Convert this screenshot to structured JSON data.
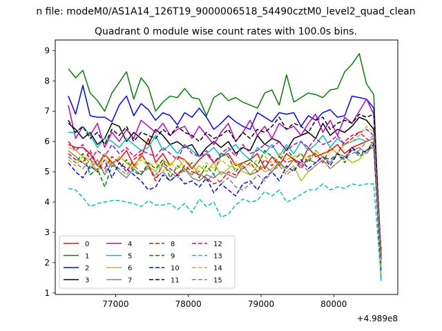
{
  "chart_data": {
    "type": "line",
    "suptitle": "n file: modeM0/AS1A14_126T19_9000006518_54490cztM0_level2_quad_clean",
    "title": "Quadrant 0 module wise count rates with 100.0s bins.",
    "xlabel": "",
    "ylabel": "",
    "x_offset_label": "+4.989e8",
    "xlim": [
      76170,
      80880
    ],
    "ylim": [
      0.95,
      9.35
    ],
    "xticks": [
      77000,
      78000,
      79000,
      80000
    ],
    "xtick_labels": [
      "77000",
      "78000",
      "79000",
      "80000"
    ],
    "yticks": [
      1,
      2,
      3,
      4,
      5,
      6,
      7,
      8,
      9
    ],
    "ytick_labels": [
      "1",
      "2",
      "3",
      "4",
      "5",
      "6",
      "7",
      "8",
      "9"
    ],
    "x": [
      76350,
      76450,
      76550,
      76650,
      76750,
      76850,
      76950,
      77050,
      77150,
      77250,
      77350,
      77450,
      77550,
      77650,
      77750,
      77850,
      77950,
      78050,
      78150,
      78250,
      78350,
      78450,
      78550,
      78650,
      78750,
      78850,
      78950,
      79050,
      79150,
      79250,
      79350,
      79450,
      79550,
      79650,
      79750,
      79850,
      79950,
      80050,
      80150,
      80250,
      80350,
      80450,
      80550,
      80650
    ],
    "legend": {
      "location": "lower-left",
      "ncol": 4
    },
    "series": [
      {
        "name": "0",
        "color": "#ff0000",
        "dash": "solid",
        "values": [
          5.9,
          5.8,
          5.8,
          5.6,
          5.2,
          5.6,
          5.3,
          5.4,
          5.7,
          5.2,
          5.5,
          6.1,
          5.3,
          5.6,
          5.2,
          5.5,
          5.4,
          5.1,
          5.4,
          5.6,
          5.3,
          5.5,
          5.6,
          5.2,
          5.3,
          5.4,
          5.6,
          5.1,
          5.5,
          5.2,
          5.6,
          5.4,
          5.3,
          5.8,
          5.5,
          5.6,
          5.7,
          5.9,
          5.6,
          5.8,
          5.9,
          6.0,
          6.1,
          2.3
        ]
      },
      {
        "name": "1",
        "color": "#008000",
        "dash": "solid",
        "values": [
          8.4,
          8.1,
          8.35,
          7.6,
          7.35,
          7.0,
          7.6,
          7.95,
          8.3,
          7.4,
          8.1,
          7.8,
          7.0,
          7.3,
          7.5,
          7.45,
          7.75,
          7.45,
          7.4,
          6.85,
          7.45,
          7.6,
          7.35,
          7.45,
          7.3,
          7.2,
          7.1,
          7.6,
          7.7,
          7.2,
          8.2,
          7.3,
          7.45,
          7.6,
          7.55,
          7.45,
          7.7,
          7.75,
          8.3,
          8.55,
          8.9,
          7.9,
          7.55,
          1.4
        ]
      },
      {
        "name": "2",
        "color": "#0000ff",
        "dash": "solid",
        "values": [
          7.5,
          6.9,
          7.85,
          6.85,
          6.8,
          6.8,
          6.65,
          7.2,
          7.5,
          6.85,
          7.25,
          7.05,
          6.7,
          6.95,
          6.85,
          6.55,
          6.95,
          6.8,
          7.1,
          6.8,
          6.4,
          6.6,
          6.85,
          6.65,
          6.5,
          6.4,
          6.95,
          6.8,
          6.65,
          6.95,
          6.9,
          6.95,
          6.5,
          6.85,
          6.7,
          6.95,
          7.05,
          6.8,
          6.85,
          7.5,
          7.45,
          7.4,
          7.1,
          2.1
        ]
      },
      {
        "name": "3",
        "color": "#000000",
        "dash": "solid",
        "values": [
          6.6,
          6.4,
          6.1,
          6.3,
          5.9,
          6.1,
          6.6,
          6.5,
          6.0,
          6.3,
          6.1,
          5.9,
          6.4,
          6.2,
          5.9,
          6.0,
          5.8,
          5.9,
          5.5,
          5.8,
          6.0,
          5.8,
          6.0,
          5.6,
          5.8,
          5.7,
          6.2,
          5.9,
          6.1,
          6.0,
          5.7,
          6.1,
          6.2,
          6.3,
          6.1,
          6.6,
          6.2,
          6.4,
          6.3,
          6.5,
          6.8,
          6.7,
          6.4,
          2.2
        ]
      },
      {
        "name": "4",
        "color": "#bf00bf",
        "dash": "solid",
        "values": [
          7.2,
          6.1,
          6.5,
          6.2,
          6.6,
          5.8,
          6.3,
          6.0,
          6.4,
          6.1,
          6.7,
          6.5,
          6.3,
          6.6,
          6.2,
          6.4,
          6.5,
          6.1,
          6.5,
          6.2,
          5.9,
          6.3,
          6.6,
          6.0,
          6.3,
          6.7,
          6.2,
          6.5,
          6.1,
          6.6,
          6.4,
          6.5,
          6.2,
          6.6,
          6.9,
          6.3,
          6.7,
          6.2,
          6.8,
          6.6,
          7.0,
          7.4,
          6.9,
          2.3
        ]
      },
      {
        "name": "5",
        "color": "#00bfbf",
        "dash": "solid",
        "values": [
          6.3,
          6.3,
          6.5,
          6.2,
          5.8,
          6.1,
          6.0,
          5.8,
          6.1,
          5.9,
          5.7,
          5.8,
          6.2,
          5.7,
          5.9,
          5.6,
          5.9,
          5.7,
          5.5,
          5.6,
          5.8,
          5.5,
          5.7,
          5.9,
          5.6,
          5.4,
          5.8,
          5.6,
          5.9,
          5.5,
          5.9,
          5.6,
          6.0,
          5.7,
          5.9,
          6.2,
          5.8,
          6.1,
          5.9,
          6.0,
          6.1,
          6.0,
          6.1,
          1.4
        ]
      },
      {
        "name": "6",
        "color": "#bfbf00",
        "dash": "solid",
        "values": [
          5.8,
          5.7,
          5.5,
          5.4,
          5.0,
          5.6,
          5.2,
          5.5,
          5.3,
          5.1,
          5.6,
          5.2,
          5.0,
          5.4,
          5.2,
          5.5,
          5.1,
          4.9,
          5.2,
          5.0,
          5.3,
          4.9,
          5.1,
          5.3,
          5.0,
          4.9,
          5.2,
          5.0,
          5.1,
          5.3,
          5.0,
          5.2,
          4.7,
          5.0,
          5.2,
          5.4,
          5.1,
          5.3,
          5.5,
          5.3,
          5.4,
          5.7,
          5.8,
          1.6
        ]
      },
      {
        "name": "7",
        "color": "#808080",
        "dash": "solid",
        "values": [
          5.7,
          5.5,
          5.3,
          5.1,
          5.4,
          4.9,
          5.3,
          5.0,
          4.8,
          5.1,
          4.9,
          5.2,
          4.8,
          5.0,
          4.7,
          4.9,
          5.1,
          4.8,
          4.7,
          4.9,
          4.8,
          5.0,
          4.9,
          4.8,
          5.2,
          4.9,
          5.0,
          5.2,
          5.0,
          5.3,
          5.1,
          5.4,
          5.2,
          5.4,
          5.3,
          5.5,
          5.3,
          5.6,
          5.5,
          5.7,
          5.8,
          5.6,
          5.9,
          1.8
        ]
      },
      {
        "name": "8",
        "color": "#ff0000",
        "dash": "dashed",
        "values": [
          5.6,
          5.4,
          5.3,
          5.7,
          5.2,
          5.1,
          5.5,
          5.3,
          5.0,
          5.4,
          5.6,
          5.2,
          4.7,
          5.3,
          5.1,
          4.9,
          5.2,
          5.0,
          4.9,
          4.8,
          4.6,
          4.7,
          5.0,
          4.9,
          5.1,
          5.3,
          5.0,
          5.4,
          5.2,
          5.5,
          5.3,
          5.4,
          5.1,
          5.5,
          5.6,
          5.3,
          5.8,
          5.6,
          6.0,
          6.2,
          6.3,
          6.1,
          5.9,
          2.4
        ]
      },
      {
        "name": "9",
        "color": "#008000",
        "dash": "dashed",
        "values": [
          5.5,
          5.3,
          5.6,
          4.9,
          5.1,
          4.5,
          5.2,
          5.1,
          5.4,
          5.0,
          4.9,
          5.3,
          5.1,
          5.4,
          4.8,
          5.2,
          5.0,
          5.3,
          4.8,
          5.2,
          4.9,
          5.6,
          5.5,
          5.0,
          5.3,
          5.4,
          5.2,
          5.7,
          5.5,
          5.3,
          5.8,
          5.4,
          5.6,
          5.3,
          5.7,
          5.5,
          5.4,
          5.6,
          5.3,
          5.8,
          5.5,
          5.7,
          6.0,
          1.9
        ]
      },
      {
        "name": "10",
        "color": "#0000ff",
        "dash": "dashed",
        "values": [
          5.3,
          5.0,
          4.8,
          5.2,
          5.0,
          5.4,
          4.8,
          5.3,
          5.1,
          4.9,
          4.7,
          4.4,
          4.5,
          4.9,
          4.7,
          4.9,
          4.6,
          4.7,
          4.5,
          4.8,
          4.3,
          4.6,
          4.4,
          4.2,
          4.6,
          4.7,
          4.4,
          4.8,
          5.0,
          4.7,
          5.2,
          5.0,
          5.4,
          5.1,
          5.3,
          5.5,
          5.2,
          5.6,
          5.4,
          5.8,
          5.6,
          5.7,
          5.9,
          1.7
        ]
      },
      {
        "name": "11",
        "color": "#000000",
        "dash": "dashed",
        "values": [
          6.7,
          6.3,
          6.5,
          6.1,
          6.3,
          5.9,
          6.4,
          6.2,
          6.5,
          6.0,
          6.3,
          6.2,
          6.1,
          6.4,
          6.2,
          6.5,
          6.3,
          6.2,
          6.0,
          6.3,
          6.1,
          6.2,
          6.4,
          6.0,
          6.3,
          6.1,
          6.4,
          6.3,
          6.5,
          6.8,
          6.4,
          6.6,
          6.5,
          6.3,
          6.7,
          6.8,
          6.4,
          6.6,
          6.7,
          6.6,
          6.9,
          6.8,
          6.9,
          2.1
        ]
      },
      {
        "name": "12",
        "color": "#bf00bf",
        "dash": "dashed",
        "values": [
          6.0,
          5.7,
          5.9,
          5.4,
          5.7,
          5.5,
          5.9,
          5.6,
          5.8,
          5.5,
          5.7,
          5.6,
          5.5,
          5.8,
          5.6,
          5.4,
          5.9,
          5.6,
          5.5,
          5.7,
          5.3,
          5.6,
          5.8,
          5.5,
          5.9,
          5.6,
          5.7,
          5.9,
          5.8,
          6.0,
          5.7,
          5.9,
          6.0,
          5.8,
          6.1,
          5.9,
          6.0,
          6.2,
          5.9,
          6.1,
          6.3,
          6.4,
          6.2,
          2.0
        ]
      },
      {
        "name": "13",
        "color": "#00bfbf",
        "dash": "dashed",
        "values": [
          4.45,
          4.4,
          4.15,
          3.85,
          3.95,
          4.0,
          4.05,
          4.05,
          4.0,
          3.95,
          3.85,
          4.05,
          3.9,
          3.9,
          3.95,
          3.75,
          3.95,
          3.65,
          4.1,
          3.85,
          4.0,
          3.5,
          3.6,
          3.9,
          4.1,
          4.0,
          4.05,
          4.35,
          4.2,
          4.4,
          4.0,
          4.1,
          4.25,
          4.4,
          4.4,
          4.6,
          4.4,
          4.5,
          4.45,
          4.6,
          4.55,
          4.6,
          4.6,
          1.5
        ]
      },
      {
        "name": "14",
        "color": "#bfbf00",
        "dash": "dashed",
        "values": [
          5.4,
          5.2,
          5.5,
          5.3,
          5.0,
          5.4,
          5.2,
          5.5,
          5.3,
          5.1,
          5.4,
          5.2,
          5.3,
          5.0,
          5.3,
          5.1,
          5.4,
          5.2,
          5.0,
          5.3,
          5.1,
          5.4,
          5.2,
          5.1,
          5.3,
          5.2,
          5.4,
          5.5,
          5.3,
          5.6,
          5.4,
          5.5,
          5.6,
          5.4,
          5.7,
          5.5,
          5.8,
          5.6,
          5.9,
          6.0,
          6.2,
          6.5,
          6.3,
          1.8
        ]
      },
      {
        "name": "15",
        "color": "#808080",
        "dash": "dashed",
        "values": [
          5.5,
          5.3,
          5.1,
          5.4,
          5.2,
          5.0,
          5.3,
          5.1,
          4.9,
          5.2,
          5.0,
          5.1,
          4.9,
          5.2,
          5.0,
          4.8,
          5.1,
          4.9,
          5.0,
          4.7,
          4.9,
          4.6,
          4.8,
          4.5,
          4.4,
          4.6,
          4.9,
          4.7,
          5.0,
          5.2,
          4.9,
          5.1,
          5.3,
          5.0,
          5.2,
          5.4,
          5.1,
          5.3,
          5.5,
          5.6,
          5.7,
          6.0,
          6.2,
          2.2
        ]
      }
    ]
  }
}
